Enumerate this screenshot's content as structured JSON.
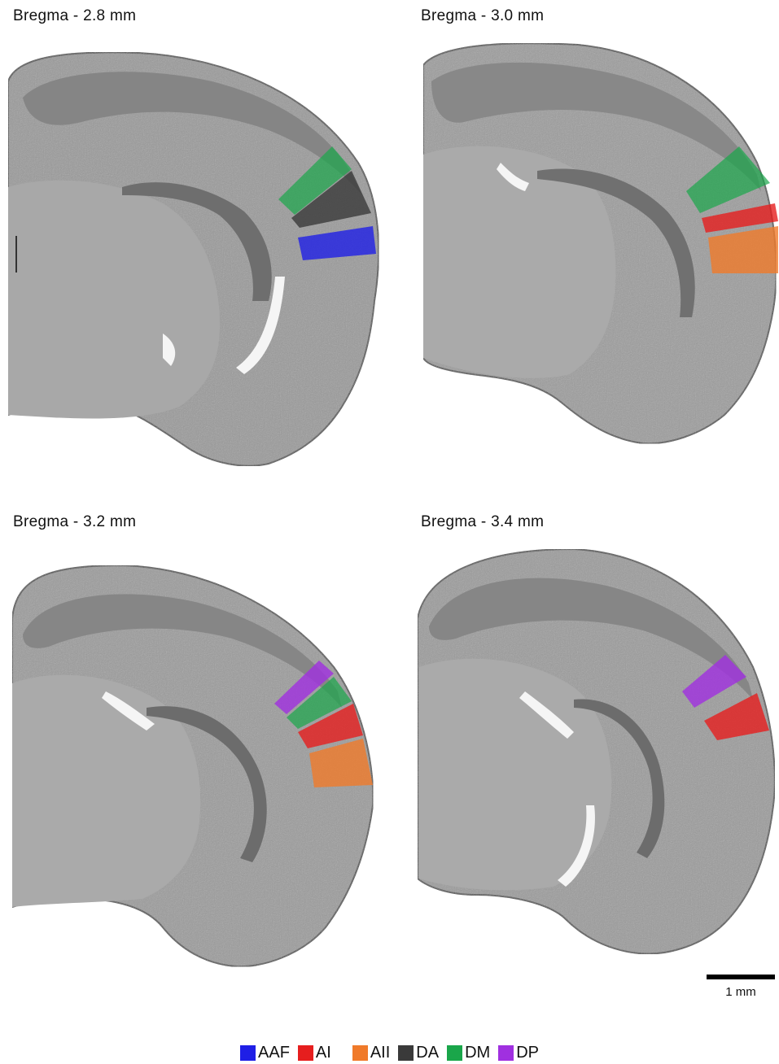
{
  "panels": [
    {
      "label": "Bregma - 2.8 mm",
      "regions": [
        "DM",
        "DA",
        "AAF"
      ]
    },
    {
      "label": "Bregma - 3.0 mm",
      "regions": [
        "DM",
        "AI",
        "AII"
      ]
    },
    {
      "label": "Bregma - 3.2 mm",
      "regions": [
        "DP",
        "DM",
        "AI",
        "AII"
      ]
    },
    {
      "label": "Bregma - 3.4 mm",
      "regions": [
        "DP",
        "AI"
      ]
    }
  ],
  "scale_bar": {
    "label": "1 mm"
  },
  "legend": [
    {
      "name": "AAF",
      "color": "#1f1fe6"
    },
    {
      "name": "AI",
      "color": "#e61e1e"
    },
    {
      "name": "AII",
      "color": "#f07a2a"
    },
    {
      "name": "DA",
      "color": "#3a3a3a"
    },
    {
      "name": "DM",
      "color": "#1aa64a"
    },
    {
      "name": "DP",
      "color": "#a030e0"
    }
  ]
}
